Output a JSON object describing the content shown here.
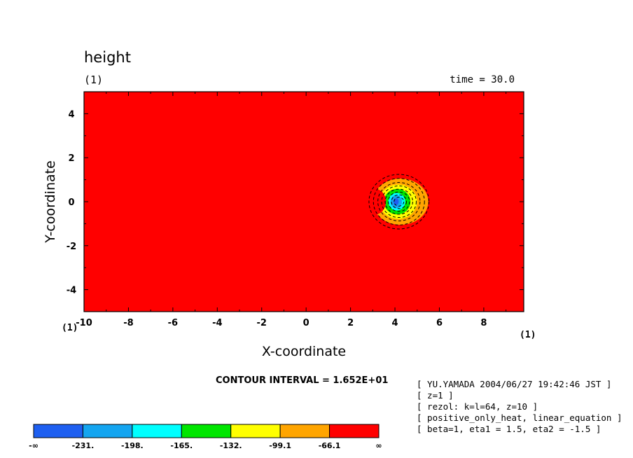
{
  "title": "height",
  "panel_label": "(1)",
  "time_label": "time = 30.0",
  "x_axis": {
    "label": "X-coordinate",
    "unit_label": "(1)",
    "ticks": [
      "-10",
      "-8",
      "-6",
      "-4",
      "-2",
      "0",
      "2",
      "4",
      "6",
      "8"
    ]
  },
  "y_axis": {
    "label": "Y-coordinate",
    "unit_label": "(1)",
    "ticks": [
      "4",
      "2",
      "0",
      "-2",
      "-4"
    ]
  },
  "contour_interval": "CONTOUR INTERVAL = 1.652E+01",
  "info_lines": [
    "[ YU.YAMADA 2004/06/27 19:42:46 JST ]",
    "[ z=1 ]",
    "[ rezol: k=l=64, z=10 ]",
    "[ positive_only_heat, linear_equation ]",
    "[ beta=1, eta1 = 1.5, eta2 = -1.5 ]"
  ],
  "colors": {
    "background_field": "#ff0000",
    "levels": [
      "#1e5ff0",
      "#14a5f0",
      "#00ffff",
      "#00e600",
      "#ffff00",
      "#ffa500",
      "#ff0000"
    ]
  },
  "chart_data": {
    "type": "heatmap",
    "title": "height",
    "xlabel": "X-coordinate",
    "ylabel": "Y-coordinate",
    "xlim": [
      -10,
      9.8
    ],
    "ylim": [
      -5,
      5
    ],
    "contour_interval": 16.52,
    "levels": [
      -231,
      -198,
      -165,
      -132,
      -99.1,
      -66.1
    ],
    "colorbar_labels": [
      "-∞",
      "-231.",
      "-198.",
      "-165.",
      "-132.",
      "-99.1",
      "-66.1",
      "∞"
    ],
    "feature": {
      "description_center_x": 4.1,
      "center_y": 0,
      "min_value_estimate": -240
    }
  }
}
